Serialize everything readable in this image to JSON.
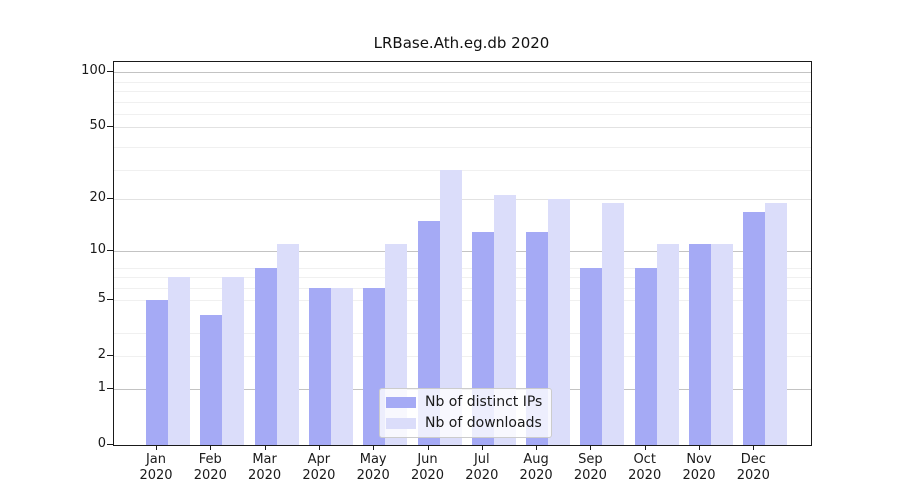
{
  "title": "LRBase.Ath.eg.db 2020",
  "chart_data": {
    "type": "bar",
    "title": "LRBase.Ath.eg.db 2020",
    "categories": [
      "Jan 2020",
      "Feb 2020",
      "Mar 2020",
      "Apr 2020",
      "May 2020",
      "Jun 2020",
      "Jul 2020",
      "Aug 2020",
      "Sep 2020",
      "Oct 2020",
      "Nov 2020",
      "Dec 2020"
    ],
    "series": [
      {
        "name": "Nb of distinct IPs",
        "color": "#a5aaf5",
        "values": [
          5,
          4,
          8,
          6,
          6,
          15,
          13,
          13,
          8,
          8,
          11,
          17
        ]
      },
      {
        "name": "Nb of downloads",
        "color": "#dbddfa",
        "values": [
          7,
          7,
          11,
          6,
          11,
          29,
          21,
          20,
          19,
          11,
          11,
          19
        ]
      }
    ],
    "xlabel": "",
    "ylabel": "",
    "y_scale": "log10(1+value)",
    "y_ticks": [
      0,
      1,
      2,
      5,
      10,
      20,
      50,
      100
    ],
    "ylim": [
      0,
      113
    ],
    "grid": true,
    "legend_position": "inside bottom-center"
  }
}
